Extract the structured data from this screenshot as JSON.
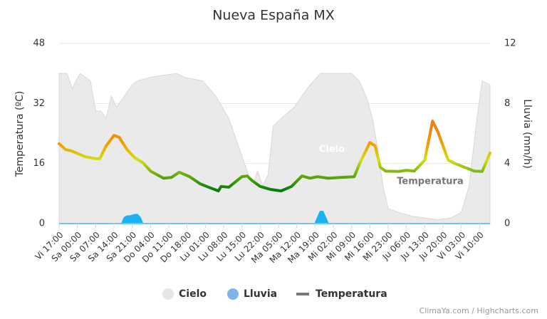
{
  "chart_data": {
    "type": "combo",
    "title": "Nueva España MX",
    "y_label": "Temperatura (ºC)",
    "y2_label": "Lluvia (mm/h)",
    "credits": "ClimaYa.com / Highcharts.com",
    "xlim": [
      0,
      165
    ],
    "xticks": [
      {
        "value": 0,
        "label": "Vi 17:00"
      },
      {
        "value": 7,
        "label": "Sa 00:00"
      },
      {
        "value": 14,
        "label": "Sa 07:00"
      },
      {
        "value": 21,
        "label": "Sa 14:00"
      },
      {
        "value": 28,
        "label": "Sa 21:00"
      },
      {
        "value": 35,
        "label": "Do 04:00"
      },
      {
        "value": 42,
        "label": "Do 11:00"
      },
      {
        "value": 49,
        "label": "Do 18:00"
      },
      {
        "value": 56,
        "label": "Lu 01:00"
      },
      {
        "value": 63,
        "label": "Lu 08:00"
      },
      {
        "value": 70,
        "label": "Lu 15:00"
      },
      {
        "value": 77,
        "label": "Lu 22:00"
      },
      {
        "value": 84,
        "label": "Ma 05:00"
      },
      {
        "value": 91,
        "label": "Ma 12:00"
      },
      {
        "value": 98,
        "label": "Ma 19:00"
      },
      {
        "value": 105,
        "label": "Mi 02:00"
      },
      {
        "value": 112,
        "label": "Mi 09:00"
      },
      {
        "value": 119,
        "label": "Mi 16:00"
      },
      {
        "value": 126,
        "label": "Mi 23:00"
      },
      {
        "value": 133,
        "label": "Ju 06:00"
      },
      {
        "value": 140,
        "label": "Ju 13:00"
      },
      {
        "value": 147,
        "label": "Ju 20:00"
      },
      {
        "value": 154,
        "label": "Vi 03:00"
      },
      {
        "value": 161,
        "label": "Vi 10:00"
      }
    ],
    "ylim": [
      0,
      48
    ],
    "yticks": [
      0,
      16,
      32,
      48
    ],
    "y2lim": [
      0,
      12
    ],
    "y2ticks": [
      0,
      4,
      8,
      12
    ],
    "grid": true,
    "legend": "bottom",
    "series": [
      {
        "name": "Cielo",
        "type": "area",
        "color": "#e6e6e6",
        "x": [
          0,
          3,
          5,
          8,
          12,
          14,
          16,
          18,
          20,
          22,
          25,
          28,
          30,
          35,
          40,
          45,
          48,
          55,
          60,
          65,
          68,
          70,
          72,
          74,
          76,
          78,
          80,
          82,
          85,
          90,
          95,
          100,
          105,
          108,
          112,
          115,
          118,
          120,
          122,
          124,
          126,
          130,
          135,
          140,
          145,
          150,
          154,
          157,
          160,
          162,
          165
        ],
        "values": [
          40,
          40,
          36,
          40,
          38,
          30,
          30,
          28,
          34,
          31,
          34,
          37,
          38,
          39,
          39.5,
          40,
          39,
          38,
          34,
          28,
          22,
          18,
          14,
          10,
          14,
          10,
          13,
          26,
          28,
          31,
          36,
          40,
          40,
          40,
          40,
          38,
          33,
          28,
          20,
          10,
          4,
          3,
          2,
          1.5,
          1,
          1.5,
          3,
          10,
          28,
          38,
          37
        ]
      },
      {
        "name": "Lluvia",
        "type": "area",
        "color": "#1ab2f5",
        "axis": "y2",
        "x": [
          0,
          24,
          25,
          26,
          27,
          29,
          30,
          31,
          32,
          98,
          99,
          100,
          101,
          102,
          103,
          165
        ],
        "values": [
          0,
          0,
          0.4,
          0.5,
          0.5,
          0.6,
          0.6,
          0.4,
          0,
          0,
          0.4,
          0.8,
          0.8,
          0.4,
          0,
          0
        ]
      },
      {
        "name": "Temperatura",
        "type": "line",
        "color": "#777777",
        "zones": [
          {
            "value": 9,
            "color": "#0a7d0a"
          },
          {
            "value": 13,
            "color": "#6aac10"
          },
          {
            "value": 17,
            "color": "#d4e010"
          },
          {
            "value": 21,
            "color": "#f0a000"
          },
          {
            "value": 26,
            "color": "#f08010"
          }
        ],
        "x": [
          0,
          2.5,
          4.6,
          10,
          14,
          15.6,
          18,
          21,
          23,
          26,
          29,
          32,
          35,
          40,
          43,
          46,
          50,
          54,
          58,
          61,
          62,
          65,
          70,
          72,
          74,
          77,
          81,
          85,
          89,
          93,
          96,
          99,
          103,
          108,
          113,
          115,
          119,
          121,
          123,
          125,
          130,
          133,
          136,
          140,
          143,
          145,
          149,
          152,
          159,
          162,
          165
        ],
        "values": [
          21.3,
          19.7,
          19.4,
          17.8,
          17.3,
          17.3,
          20.7,
          23.5,
          23,
          19.7,
          17.5,
          16.3,
          14,
          12.1,
          12.3,
          13.7,
          12.5,
          10.6,
          9.5,
          8.7,
          9.9,
          9.7,
          12.5,
          12.7,
          11.4,
          9.9,
          9.1,
          8.7,
          9.9,
          12.7,
          12.1,
          12.5,
          12.1,
          12.3,
          12.5,
          15.9,
          21.6,
          20.7,
          15,
          14,
          13.9,
          14.2,
          14,
          16.9,
          27.3,
          24.5,
          16.9,
          15.9,
          14,
          13.9,
          18.8
        ]
      }
    ]
  }
}
